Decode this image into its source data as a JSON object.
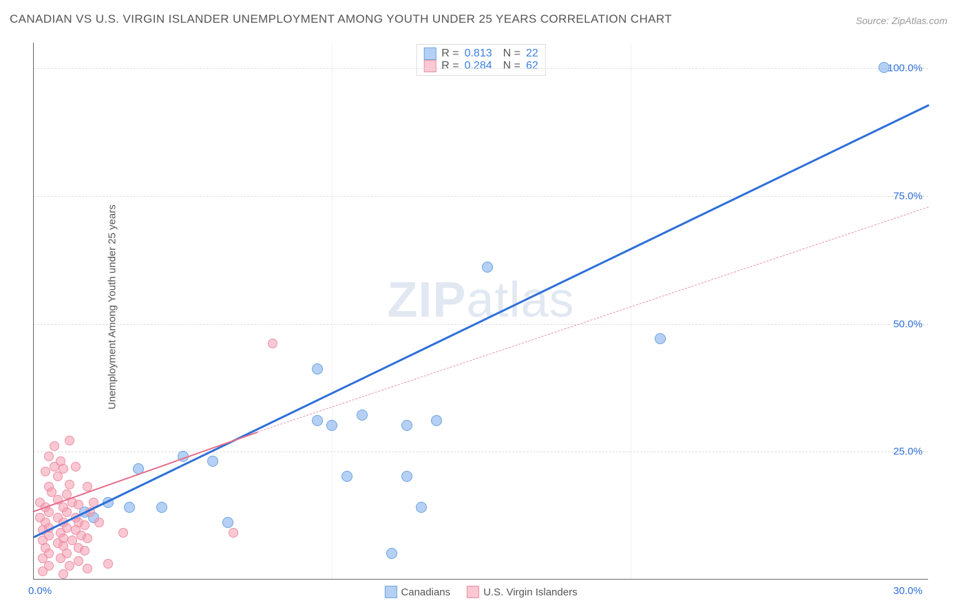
{
  "title": "CANADIAN VS U.S. VIRGIN ISLANDER UNEMPLOYMENT AMONG YOUTH UNDER 25 YEARS CORRELATION CHART",
  "source": "Source: ZipAtlas.com",
  "ylabel": "Unemployment Among Youth under 25 years",
  "watermark_bold": "ZIP",
  "watermark_light": "atlas",
  "chart": {
    "type": "scatter",
    "xlim": [
      0,
      30
    ],
    "ylim": [
      0,
      105
    ],
    "xtick_labels": {
      "0": "0.0%",
      "30": "30.0%"
    },
    "ytick_positions": [
      25,
      50,
      75,
      100
    ],
    "ytick_labels": [
      "25.0%",
      "50.0%",
      "75.0%",
      "100.0%"
    ],
    "grid_color": "#dddddd",
    "background_color": "#ffffff",
    "axis_color": "#666666",
    "marker_size": 16,
    "marker_size_small": 14,
    "series": [
      {
        "name": "Canadians",
        "color_fill": "rgba(120,170,235,0.55)",
        "color_stroke": "#6aa3e0",
        "trend_color": "#2e6fd9",
        "trend_width": 3,
        "trend_dash": "none",
        "r_label": "R =",
        "n_label": "N =",
        "r_value": "0.813",
        "n_value": "22",
        "trend": {
          "x1": 0,
          "y1": 8.5,
          "x2": 30,
          "y2": 93
        },
        "points": [
          [
            28.5,
            100
          ],
          [
            21,
            47
          ],
          [
            15.2,
            61
          ],
          [
            13.5,
            31
          ],
          [
            12.5,
            30
          ],
          [
            11,
            32
          ],
          [
            10,
            30
          ],
          [
            9.5,
            31
          ],
          [
            13,
            14
          ],
          [
            12,
            5
          ],
          [
            12.5,
            20
          ],
          [
            10.5,
            20
          ],
          [
            9.5,
            41
          ],
          [
            6,
            23
          ],
          [
            5,
            24
          ],
          [
            6.5,
            11
          ],
          [
            3.5,
            21.5
          ],
          [
            4.3,
            14
          ],
          [
            3.2,
            14
          ],
          [
            2,
            12
          ],
          [
            2.5,
            15
          ],
          [
            1.7,
            13
          ]
        ]
      },
      {
        "name": "U.S. Virgin Islanders",
        "color_fill": "rgba(245,155,175,0.55)",
        "color_stroke": "#ec8fa5",
        "trend_color": "#ec8fa5",
        "trend_solid_color": "#e56d8a",
        "trend_width": 2.5,
        "trend_dash": "5,5",
        "r_label": "R =",
        "n_label": "N =",
        "r_value": "0.284",
        "n_value": "62",
        "trend_solid": {
          "x1": 0,
          "y1": 13.5,
          "x2": 7.5,
          "y2": 29
        },
        "trend": {
          "x1": 7.5,
          "y1": 29,
          "x2": 30,
          "y2": 73
        },
        "points": [
          [
            8,
            46
          ],
          [
            6.7,
            9
          ],
          [
            3,
            9
          ],
          [
            1.2,
            27
          ],
          [
            0.7,
            26
          ],
          [
            0.5,
            24
          ],
          [
            0.7,
            22
          ],
          [
            0.9,
            23
          ],
          [
            0.4,
            21
          ],
          [
            0.8,
            20
          ],
          [
            1.0,
            21.5
          ],
          [
            1.4,
            22
          ],
          [
            0.5,
            18
          ],
          [
            1.2,
            18.5
          ],
          [
            0.6,
            17
          ],
          [
            1.1,
            16.5
          ],
          [
            1.8,
            18
          ],
          [
            0.2,
            15
          ],
          [
            0.8,
            15.5
          ],
          [
            1.3,
            15
          ],
          [
            0.4,
            14
          ],
          [
            1.0,
            14
          ],
          [
            1.5,
            14.5
          ],
          [
            2.0,
            15
          ],
          [
            0.5,
            13
          ],
          [
            1.1,
            13
          ],
          [
            0.2,
            12
          ],
          [
            0.8,
            12
          ],
          [
            1.4,
            12
          ],
          [
            1.9,
            13
          ],
          [
            0.4,
            11
          ],
          [
            1.0,
            11
          ],
          [
            1.5,
            11
          ],
          [
            0.5,
            10
          ],
          [
            1.1,
            10
          ],
          [
            1.7,
            10.5
          ],
          [
            2.2,
            11
          ],
          [
            0.3,
            9.5
          ],
          [
            0.9,
            9
          ],
          [
            1.4,
            9.5
          ],
          [
            0.5,
            8.5
          ],
          [
            1.0,
            8
          ],
          [
            1.6,
            8.5
          ],
          [
            0.3,
            7.5
          ],
          [
            0.8,
            7
          ],
          [
            1.3,
            7.5
          ],
          [
            1.8,
            8
          ],
          [
            0.4,
            6
          ],
          [
            1.0,
            6.5
          ],
          [
            1.5,
            6
          ],
          [
            0.5,
            5
          ],
          [
            1.1,
            5
          ],
          [
            1.7,
            5.5
          ],
          [
            0.3,
            4
          ],
          [
            0.9,
            4
          ],
          [
            1.5,
            3.5
          ],
          [
            0.5,
            2.5
          ],
          [
            1.2,
            2.5
          ],
          [
            1.8,
            2
          ],
          [
            2.5,
            3
          ],
          [
            0.3,
            1.5
          ],
          [
            1.0,
            1
          ]
        ]
      }
    ]
  },
  "legend_top": {
    "r_value_color": "#3b7de0",
    "text_color": "#555555"
  },
  "legend_bottom": {
    "items": [
      "Canadians",
      "U.S. Virgin Islanders"
    ]
  }
}
